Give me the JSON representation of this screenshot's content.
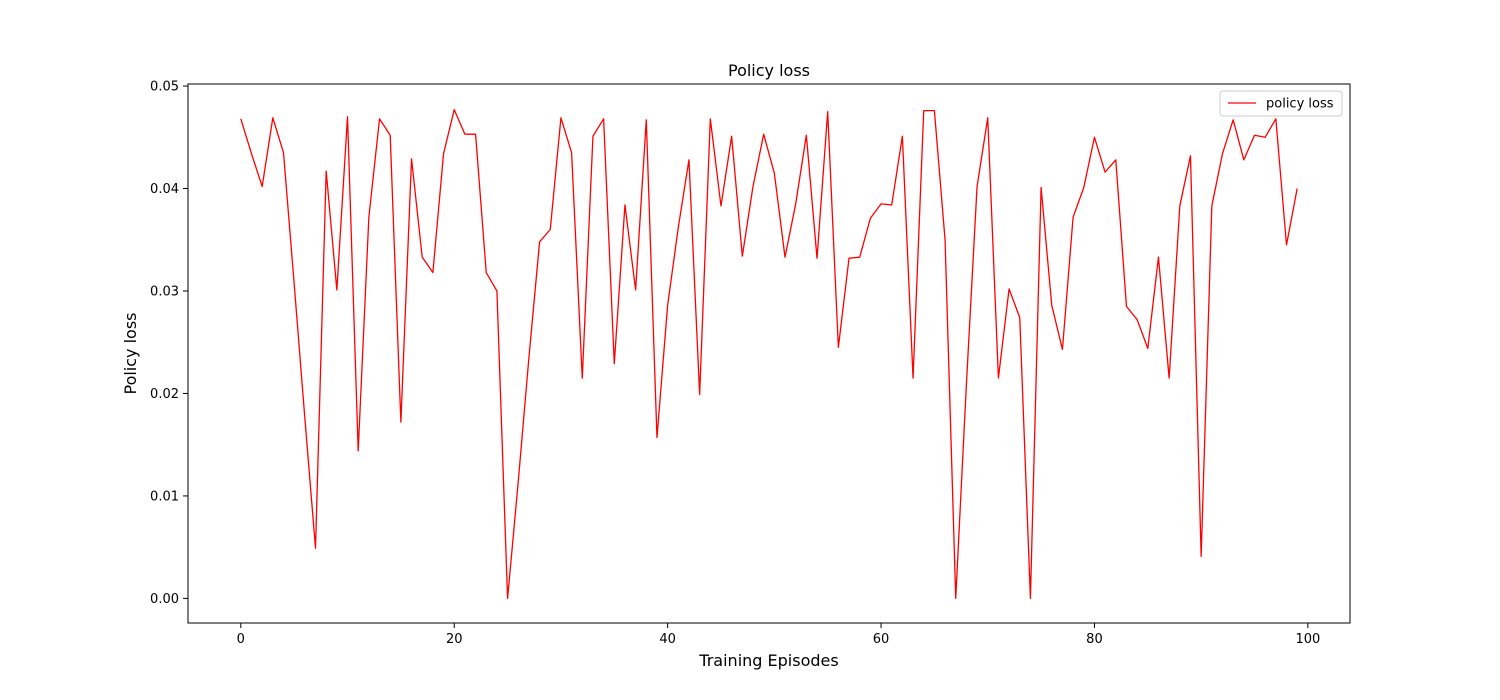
{
  "chart_data": {
    "type": "line",
    "title": "Policy loss",
    "xlabel": "Training Episodes",
    "ylabel": "Policy loss",
    "xlim": [
      -4.95,
      103.95
    ],
    "ylim": [
      -0.0024,
      0.0502
    ],
    "xticks": [
      0,
      20,
      40,
      60,
      80,
      100
    ],
    "xtick_labels": [
      "0",
      "20",
      "40",
      "60",
      "80",
      "100"
    ],
    "yticks": [
      0.0,
      0.01,
      0.02,
      0.03,
      0.04,
      0.05
    ],
    "ytick_labels": [
      "0.00",
      "0.01",
      "0.02",
      "0.03",
      "0.04",
      "0.05"
    ],
    "grid": false,
    "legend_position": "top-right",
    "series": [
      {
        "name": "policy loss",
        "color": "#ff0000",
        "x": [
          0,
          1,
          2,
          3,
          4,
          5,
          6,
          7,
          8,
          9,
          10,
          11,
          12,
          13,
          14,
          15,
          16,
          17,
          18,
          19,
          20,
          21,
          22,
          23,
          24,
          25,
          26,
          27,
          28,
          29,
          30,
          31,
          32,
          33,
          34,
          35,
          36,
          37,
          38,
          39,
          40,
          41,
          42,
          43,
          44,
          45,
          46,
          47,
          48,
          49,
          50,
          51,
          52,
          53,
          54,
          55,
          56,
          57,
          58,
          59,
          60,
          61,
          62,
          63,
          64,
          65,
          66,
          67,
          68,
          69,
          70,
          71,
          72,
          73,
          74,
          75,
          76,
          77,
          78,
          79,
          80,
          81,
          82,
          83,
          84,
          85,
          86,
          87,
          88,
          89,
          90,
          91,
          92,
          93,
          94,
          95,
          96,
          97,
          98,
          99
        ],
        "y": [
          0.0468,
          0.0434,
          0.0402,
          0.0469,
          0.0435,
          0.0307,
          0.0176,
          0.0049,
          0.0417,
          0.0301,
          0.047,
          0.0144,
          0.0372,
          0.0468,
          0.0452,
          0.0172,
          0.0429,
          0.0333,
          0.0318,
          0.0434,
          0.0477,
          0.0453,
          0.0453,
          0.0318,
          0.03,
          0.0,
          0.0114,
          0.0235,
          0.0348,
          0.036,
          0.0469,
          0.0435,
          0.0215,
          0.0451,
          0.0468,
          0.0229,
          0.0384,
          0.0301,
          0.0467,
          0.0157,
          0.0286,
          0.0362,
          0.0428,
          0.0199,
          0.0468,
          0.0383,
          0.0451,
          0.0334,
          0.0402,
          0.0453,
          0.0415,
          0.0333,
          0.0385,
          0.0452,
          0.0332,
          0.0475,
          0.0245,
          0.0332,
          0.0333,
          0.0371,
          0.0385,
          0.0384,
          0.0451,
          0.0215,
          0.0476,
          0.0476,
          0.035,
          0.0,
          0.0209,
          0.0402,
          0.0469,
          0.0215,
          0.0302,
          0.0274,
          0.0,
          0.0401,
          0.0286,
          0.0243,
          0.0372,
          0.0401,
          0.045,
          0.0416,
          0.0428,
          0.0285,
          0.0272,
          0.0244,
          0.0333,
          0.0215,
          0.0383,
          0.0432,
          0.0041,
          0.0383,
          0.0434,
          0.0467,
          0.0428,
          0.0452,
          0.045,
          0.0468,
          0.0345,
          0.04
        ]
      }
    ]
  }
}
